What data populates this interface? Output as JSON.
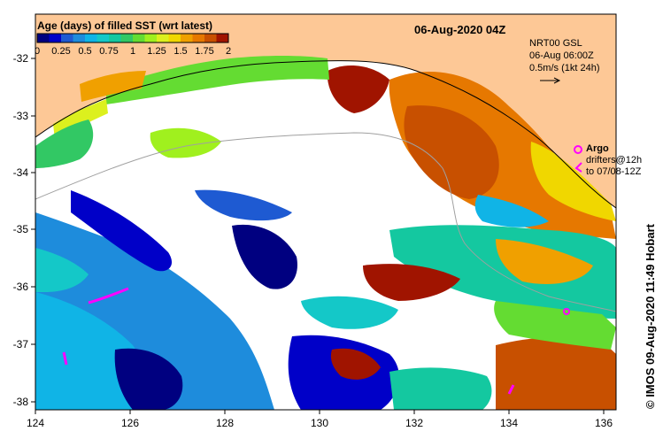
{
  "legend": {
    "title": "Age (days) of filled SST (wrt latest)",
    "ticks": [
      "0",
      "0.25",
      "0.5",
      "0.75",
      "1",
      "1.25",
      "1.5",
      "1.75",
      "2"
    ],
    "colors": [
      "#000080",
      "#0000c8",
      "#1e5ad2",
      "#1e8cdc",
      "#10b4e6",
      "#14c8c8",
      "#14c8a0",
      "#32c864",
      "#64dc32",
      "#a0f01e",
      "#dcf01e",
      "#f0d700",
      "#f0a000",
      "#e67800",
      "#c85000",
      "#a01400"
    ]
  },
  "title": "06-Aug-2020 04Z",
  "current_info": {
    "line1": "NRT00 GSL",
    "line2": "06-Aug 06:00Z",
    "line3": "0.5m/s (1kt 24h)"
  },
  "argo": {
    "label": "Argo",
    "line2": "drifters@12h",
    "line3": "to 07/08-12Z"
  },
  "credit": "© IMOS 09-Aug-2020 11:49 Hobart",
  "axes": {
    "x_ticks": [
      "124",
      "126",
      "128",
      "130",
      "132",
      "134",
      "136"
    ],
    "y_ticks": [
      "-32",
      "-33",
      "-34",
      "-35",
      "-36",
      "-37",
      "-38"
    ]
  },
  "colors": {
    "land": "#fdc896",
    "ocean_nodata": "#ffffff",
    "argo_marker": "#ff00ff"
  }
}
